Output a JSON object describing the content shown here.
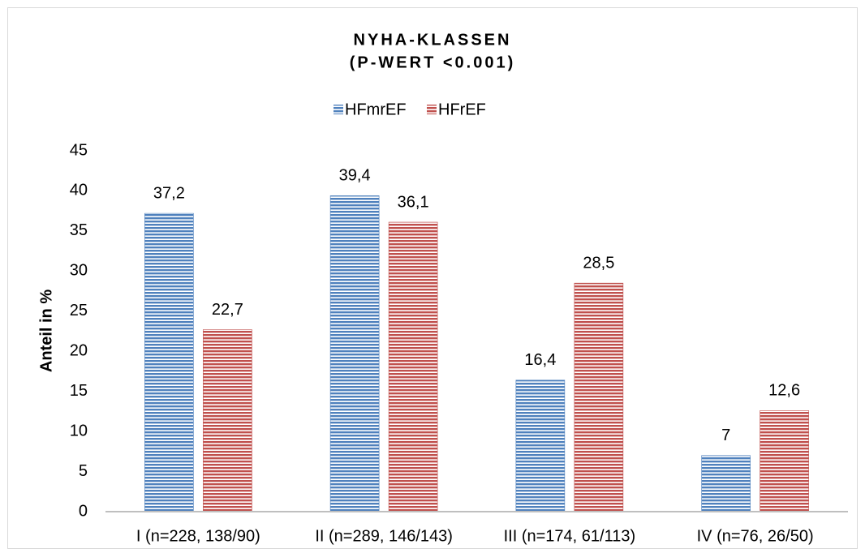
{
  "chart_data": {
    "type": "bar",
    "title": "NYHA-KLASSEN",
    "subtitle": "(P-WERT <0.001)",
    "y_label": "Anteil in %",
    "categories": [
      "I (n=228, 138/90)",
      "II (n=289, 146/143)",
      "III (n=174, 61/113)",
      "IV (n=76, 26/50)"
    ],
    "series": [
      {
        "name": "HFmrEF",
        "color": "#4f81bd",
        "values": [
          37.2,
          39.4,
          16.4,
          7
        ],
        "value_labels": [
          "37,2",
          "39,4",
          "16,4",
          "7"
        ]
      },
      {
        "name": "HFrEF",
        "color": "#c0504d",
        "values": [
          22.7,
          36.1,
          28.5,
          12.6
        ],
        "value_labels": [
          "22,7",
          "36,1",
          "28,5",
          "12,6"
        ]
      }
    ],
    "ylim": [
      0,
      45
    ],
    "yticks": [
      0,
      5,
      10,
      15,
      20,
      25,
      30,
      35,
      40,
      45
    ],
    "grid": false,
    "legend": "top"
  }
}
